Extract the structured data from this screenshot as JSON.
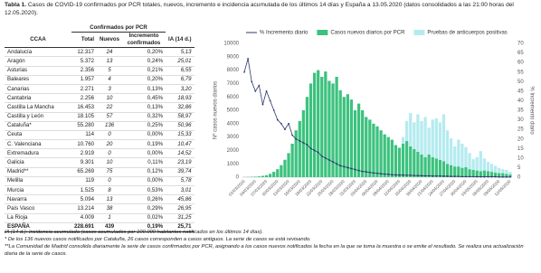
{
  "caption": {
    "label": "Tabla 1.",
    "text": "Casos de COVID-19 confirmados por PCR totales, nuevos, incremento e incidencia acumulada de los últimos 14 días y España a 13.05.2020 (datos consolidados a las 21:00 horas del 12.05.2020)."
  },
  "table": {
    "group_header": "Confirmados por PCR",
    "columns": [
      "CCAA",
      "Total",
      "Nuevos",
      "Incremento confirmados",
      "IA (14 d.)"
    ],
    "rows": [
      [
        "Andalucía",
        "12.317",
        "24",
        "0,20%",
        "5,13"
      ],
      [
        "Aragón",
        "5.372",
        "13",
        "0,24%",
        "25,01"
      ],
      [
        "Asturias",
        "2.356",
        "5",
        "0,21%",
        "6,55"
      ],
      [
        "Baleares",
        "1.957",
        "4",
        "0,20%",
        "6,79"
      ],
      [
        "Canarias",
        "2.271",
        "3",
        "0,13%",
        "3,20"
      ],
      [
        "Cantabria",
        "2.256",
        "10",
        "0,45%",
        "18,93"
      ],
      [
        "Castilla La Mancha",
        "16.453",
        "22",
        "0,13%",
        "32,86"
      ],
      [
        "Castilla y León",
        "18.105",
        "57",
        "0,32%",
        "58,97"
      ],
      [
        "Cataluña*",
        "55.280",
        "136",
        "0,25%",
        "50,96"
      ],
      [
        "Ceuta",
        "114",
        "0",
        "0,00%",
        "15,33"
      ],
      [
        "C. Valenciana",
        "10.760",
        "20",
        "0,19%",
        "10,47"
      ],
      [
        "Extremadura",
        "2.919",
        "0",
        "0,00%",
        "14,52"
      ],
      [
        "Galicia",
        "9.301",
        "10",
        "0,11%",
        "23,19"
      ],
      [
        "Madrid**",
        "65.269",
        "75",
        "0,12%",
        "39,74"
      ],
      [
        "Melilla",
        "119",
        "0",
        "0,00%",
        "5,78"
      ],
      [
        "Murcia",
        "1.525",
        "8",
        "0,53%",
        "3,01"
      ],
      [
        "Navarra",
        "5.094",
        "13",
        "0,26%",
        "45,86"
      ],
      [
        "País Vasco",
        "13.214",
        "38",
        "0,29%",
        "26,95"
      ],
      [
        "La Rioja",
        "4.009",
        "1",
        "0,02%",
        "31,25"
      ]
    ],
    "total": [
      "ESPAÑA",
      "228.691",
      "439",
      "0,19%",
      "25,71"
    ]
  },
  "notes": [
    "IA (14 d.): Incidencia acumulada (casos acumulados por 100.000 habitantes notificados en los últimos 14 días).",
    "* De los 136 nuevos casos notificados por Cataluña, 26 casos corresponden a casos antiguos. La serie de casos se está revisando.",
    "**La Comunidad de Madrid consolida diariamente la serie de casos confirmados por PCR, asignando a los casos nuevos notificados la fecha en la que se toma la muestra o se emite el resultado. Se realiza una actualización diaria de la serie de casos."
  ],
  "chart_data": {
    "type": "bar",
    "stacked": true,
    "grid": false,
    "legend": "top",
    "ylabel": "Nº casos nuevos diarios",
    "y2label": "% Incremento diario",
    "categories": [
      "01/03/2020",
      null,
      null,
      "04/03/2020",
      null,
      null,
      "07/03/2020",
      null,
      null,
      "10/03/2020",
      null,
      null,
      "13/03/2020",
      null,
      null,
      "16/03/2020",
      null,
      null,
      "19/03/2020",
      null,
      null,
      "22/03/2020",
      null,
      null,
      "25/03/2020",
      null,
      null,
      "28/03/2020",
      null,
      null,
      "31/03/2020",
      null,
      null,
      "03/04/2020",
      null,
      null,
      "06/04/2020",
      null,
      null,
      "09/04/2020",
      null,
      null,
      "12/04/2020",
      null,
      null,
      "15/04/2020",
      null,
      null,
      "18/04/2020",
      null,
      null,
      "21/04/2020",
      null,
      null,
      "24/04/2020",
      null,
      null,
      "27/04/2020",
      null,
      null,
      "30/04/2020",
      null,
      null,
      "03/05/2020",
      null,
      null,
      "06/05/2020",
      null,
      null,
      "09/05/2020",
      null,
      null,
      "12/05/2020"
    ],
    "ylim": [
      0,
      10000
    ],
    "yticks": [
      0,
      1000,
      2000,
      3000,
      4000,
      5000,
      6000,
      7000,
      8000,
      9000,
      10000
    ],
    "y2lim": [
      0,
      70
    ],
    "y2ticks": [
      0,
      5,
      10,
      15,
      20,
      25,
      30,
      35,
      40,
      45,
      50,
      55,
      60,
      65,
      70
    ],
    "series": [
      {
        "name": "% Incremento diario",
        "type": "line",
        "axis": "y2",
        "color": "#2e3a6b",
        "values": [
          55,
          62,
          50,
          45,
          48,
          38,
          45,
          40,
          35,
          30,
          28,
          25,
          28,
          22,
          20,
          19,
          18,
          17,
          15,
          14,
          13,
          11,
          10,
          9,
          8,
          7,
          6,
          5.5,
          5,
          4.5,
          4,
          3.5,
          3,
          2.8,
          2.5,
          2.2,
          2,
          1.8,
          1.6,
          1.5,
          1.3,
          1.2,
          1.1,
          1.1,
          1,
          1,
          0.9,
          0.8,
          0.8,
          0.7,
          0.7,
          0.6,
          0.6,
          0.6,
          0.5,
          0.5,
          0.4,
          0.4,
          0.4,
          0.3,
          0.3,
          0.3,
          0.3,
          0.2,
          0.2,
          0.2,
          0.2,
          0.2,
          0.2,
          0.1,
          0.1,
          0.1,
          0.1
        ]
      },
      {
        "name": "Casos nuevos diarios por PCR",
        "type": "bar",
        "color": "#3cc27e",
        "values": [
          10,
          20,
          30,
          40,
          60,
          100,
          150,
          250,
          400,
          600,
          900,
          1300,
          1800,
          2500,
          3500,
          4200,
          5000,
          6000,
          7000,
          7800,
          8000,
          7500,
          7900,
          7200,
          7000,
          7500,
          6500,
          6000,
          6200,
          5800,
          5000,
          5500,
          5000,
          4500,
          4300,
          4000,
          3800,
          3500,
          3200,
          3000,
          2800,
          2400,
          2200,
          2500,
          2700,
          2300,
          2100,
          1900,
          1700,
          1500,
          1700,
          1500,
          1400,
          1300,
          1200,
          1000,
          900,
          800,
          800,
          700,
          750,
          600,
          550,
          500,
          450,
          500,
          450,
          400,
          350,
          300,
          300,
          250,
          200
        ]
      },
      {
        "name": "Pruebas de anticuerpos positivas",
        "type": "bar",
        "color": "#b5ebf0",
        "values": [
          null,
          null,
          null,
          null,
          null,
          null,
          null,
          null,
          null,
          null,
          null,
          null,
          null,
          null,
          null,
          null,
          null,
          null,
          null,
          null,
          null,
          null,
          null,
          null,
          null,
          null,
          null,
          null,
          null,
          null,
          null,
          null,
          null,
          null,
          null,
          null,
          null,
          null,
          null,
          null,
          null,
          null,
          null,
          500,
          1500,
          2500,
          2000,
          2800,
          2500,
          3000,
          2000,
          2800,
          3000,
          2800,
          3500,
          2500,
          2000,
          1500,
          2000,
          1800,
          1500,
          1200,
          800,
          1000,
          1500,
          900,
          700,
          600,
          500,
          400,
          300,
          300,
          200
        ]
      }
    ]
  }
}
